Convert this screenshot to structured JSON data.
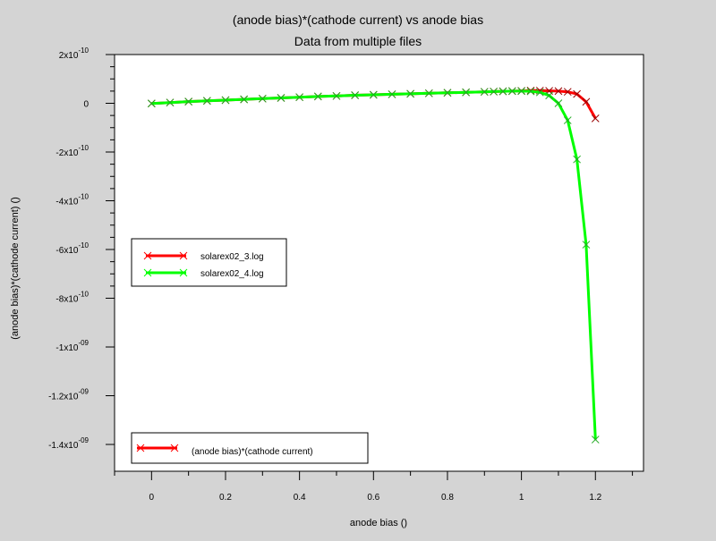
{
  "chart_data": {
    "type": "line",
    "title": "(anode bias)*(cathode current) vs anode bias",
    "subtitle": "Data from multiple files",
    "xlabel": "anode bias ()",
    "ylabel": "(anode bias)*(cathode current) ()",
    "xlim": [
      -0.1,
      1.33
    ],
    "ylim": [
      -1.51e-09,
      2e-10
    ],
    "grid": false,
    "x_ticks": [
      {
        "v": 0,
        "label": "0"
      },
      {
        "v": 0.2,
        "label": "0.2"
      },
      {
        "v": 0.4,
        "label": "0.4"
      },
      {
        "v": 0.6,
        "label": "0.6"
      },
      {
        "v": 0.8,
        "label": "0.8"
      },
      {
        "v": 1,
        "label": "1"
      },
      {
        "v": 1.2,
        "label": "1.2"
      }
    ],
    "y_ticks": [
      {
        "v": 2e-10,
        "mant": "2x10",
        "exp": "-10"
      },
      {
        "v": 0,
        "mant": "0",
        "exp": ""
      },
      {
        "v": -2e-10,
        "mant": "-2x10",
        "exp": "-10"
      },
      {
        "v": -4e-10,
        "mant": "-4x10",
        "exp": "-10"
      },
      {
        "v": -6e-10,
        "mant": "-6x10",
        "exp": "-10"
      },
      {
        "v": -8e-10,
        "mant": "-8x10",
        "exp": "-10"
      },
      {
        "v": -1e-09,
        "mant": "-1x10",
        "exp": "-09"
      },
      {
        "v": -1.2e-09,
        "mant": "-1.2x10",
        "exp": "-09"
      },
      {
        "v": -1.4e-09,
        "mant": "-1.4x10",
        "exp": "-09"
      }
    ],
    "legend_placement": "middle-left",
    "series": [
      {
        "name": "solarex02_3.log",
        "color": "#ff0000",
        "x": [
          0,
          0.05,
          0.1,
          0.15,
          0.2,
          0.25,
          0.3,
          0.35,
          0.4,
          0.45,
          0.5,
          0.55,
          0.6,
          0.65,
          0.7,
          0.75,
          0.8,
          0.85,
          0.9,
          0.925,
          0.95,
          0.975,
          1.0,
          1.025,
          1.05,
          1.075,
          1.1,
          1.125,
          1.15,
          1.175,
          1.2
        ],
        "y": [
          -1e-12,
          3e-12,
          7e-12,
          1e-11,
          1.3e-11,
          1.6e-11,
          1.9e-11,
          2.2e-11,
          2.5e-11,
          2.8e-11,
          3e-11,
          3.3e-11,
          3.5e-11,
          3.7e-11,
          3.9e-11,
          4.1e-11,
          4.3e-11,
          4.5e-11,
          4.7e-11,
          4.8e-11,
          4.9e-11,
          5e-11,
          5.1e-11,
          5.2e-11,
          5.2e-11,
          5.1e-11,
          5e-11,
          4.7e-11,
          3.8e-11,
          6e-12,
          -6.2e-11
        ]
      },
      {
        "name": "solarex02_4.log",
        "color": "#00ff00",
        "x": [
          0,
          0.05,
          0.1,
          0.15,
          0.2,
          0.25,
          0.3,
          0.35,
          0.4,
          0.45,
          0.5,
          0.55,
          0.6,
          0.65,
          0.7,
          0.75,
          0.8,
          0.85,
          0.9,
          0.925,
          0.95,
          0.975,
          1.0,
          1.025,
          1.05,
          1.075,
          1.1,
          1.125,
          1.15,
          1.175,
          1.2
        ],
        "y": [
          -1e-12,
          3e-12,
          7e-12,
          1e-11,
          1.3e-11,
          1.6e-11,
          1.9e-11,
          2.2e-11,
          2.5e-11,
          2.8e-11,
          3e-11,
          3.3e-11,
          3.5e-11,
          3.7e-11,
          3.9e-11,
          4.1e-11,
          4.3e-11,
          4.5e-11,
          4.7e-11,
          4.8e-11,
          4.9e-11,
          5e-11,
          5e-11,
          4.9e-11,
          4.5e-11,
          3.2e-11,
          0,
          -7e-11,
          -2.3e-10,
          -5.8e-10,
          -1.38e-09
        ]
      }
    ],
    "lower_legend": {
      "label": "(anode bias)*(cathode current)",
      "color": "#ff0000"
    }
  }
}
